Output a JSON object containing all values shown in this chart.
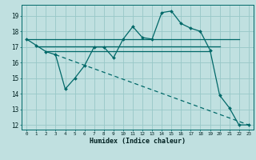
{
  "xlabel": "Humidex (Indice chaleur)",
  "bg_color": "#c0e0e0",
  "grid_color": "#98c8c8",
  "line_color": "#006868",
  "xlim": [
    -0.5,
    23.5
  ],
  "ylim": [
    11.7,
    19.7
  ],
  "yticks": [
    12,
    13,
    14,
    15,
    16,
    17,
    18,
    19
  ],
  "xticks": [
    0,
    1,
    2,
    3,
    4,
    5,
    6,
    7,
    8,
    9,
    10,
    11,
    12,
    13,
    14,
    15,
    16,
    17,
    18,
    19,
    20,
    21,
    22,
    23
  ],
  "main_line_x": [
    0,
    1,
    2,
    3,
    4,
    5,
    6,
    7,
    8,
    9,
    10,
    11,
    12,
    13,
    14,
    15,
    16,
    17,
    18,
    19,
    20,
    21,
    22,
    23
  ],
  "main_line_y": [
    17.5,
    17.1,
    16.7,
    16.5,
    14.3,
    15.0,
    15.8,
    17.0,
    17.0,
    16.3,
    17.5,
    18.3,
    17.6,
    17.5,
    19.2,
    19.3,
    18.5,
    18.2,
    18.0,
    16.8,
    13.9,
    13.1,
    12.0,
    12.0
  ],
  "flat_line1_x": [
    0,
    22
  ],
  "flat_line1_y": [
    17.5,
    17.5
  ],
  "flat_line2_x": [
    1,
    20
  ],
  "flat_line2_y": [
    17.05,
    17.05
  ],
  "flat_line3_x": [
    2,
    19
  ],
  "flat_line3_y": [
    16.75,
    16.75
  ],
  "diag_line_x": [
    3,
    23
  ],
  "diag_line_y": [
    16.5,
    12.0
  ]
}
